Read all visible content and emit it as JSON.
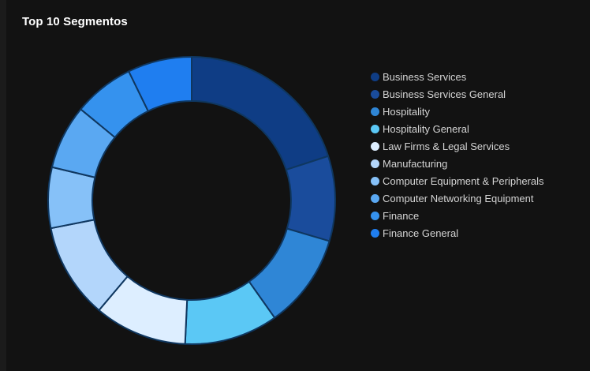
{
  "card": {
    "title": "Top 10 Segmentos"
  },
  "chart_data": {
    "type": "pie",
    "title": "Top 10 Segmentos",
    "donut": true,
    "legend_position": "right",
    "categories": [
      "Business Services",
      "Business Services General",
      "Hospitality",
      "Hospitality General",
      "Law Firms & Legal Services",
      "Manufacturing",
      "Computer Equipment & Peripherals",
      "Computer Networking Equipment",
      "Finance",
      "Finance General"
    ],
    "values": [
      20.5,
      9.8,
      10.9,
      10.8,
      10.7,
      11.0,
      7.0,
      7.4,
      7.0,
      7.4
    ],
    "colors": [
      "#0f3d85",
      "#1a4c9c",
      "#2f86d6",
      "#5bc8f5",
      "#ddeeff",
      "#b3d6fb",
      "#86c1f8",
      "#5aa8f2",
      "#3592ee",
      "#1f7ef0"
    ],
    "border_color": "#0f3760"
  }
}
